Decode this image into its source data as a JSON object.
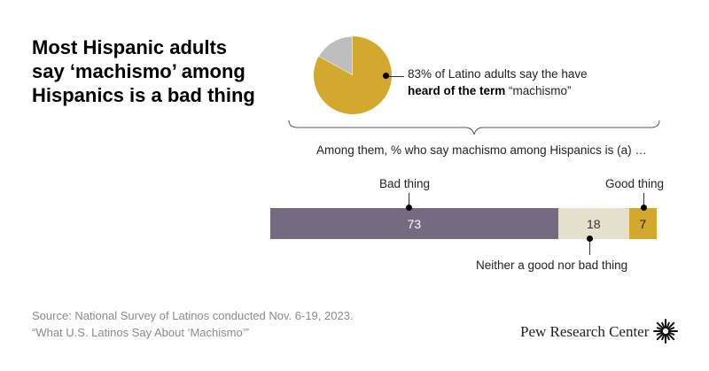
{
  "title": "Most Hispanic adults say ‘machismo’ among Hispanics is a bad thing",
  "pie": {
    "note_line1": "83% of Latino adults say the have",
    "note_bold": "heard of the term",
    "note_rest": " “machismo”",
    "heard_percent": 83,
    "colors": {
      "heard": "#d2a92e",
      "rest": "#bdbdbd"
    }
  },
  "subhead": "Among them, % who say machismo among Hispanics is (a) …",
  "chart_data": {
    "type": "bar",
    "stacked": true,
    "categories": [
      "Bad thing",
      "Neither a good nor bad thing",
      "Good thing"
    ],
    "values": [
      73,
      18,
      7
    ],
    "colors": [
      "#756a80",
      "#e5e0cc",
      "#d2a92e"
    ],
    "label_colors": [
      "#ffffff",
      "#333333",
      "#222222"
    ]
  },
  "source": {
    "line1": "Source: National Survey of Latinos conducted Nov. 6-19, 2023.",
    "line2": "“What U.S. Latinos Say About ‘Machismo’”"
  },
  "brand": "Pew Research Center"
}
